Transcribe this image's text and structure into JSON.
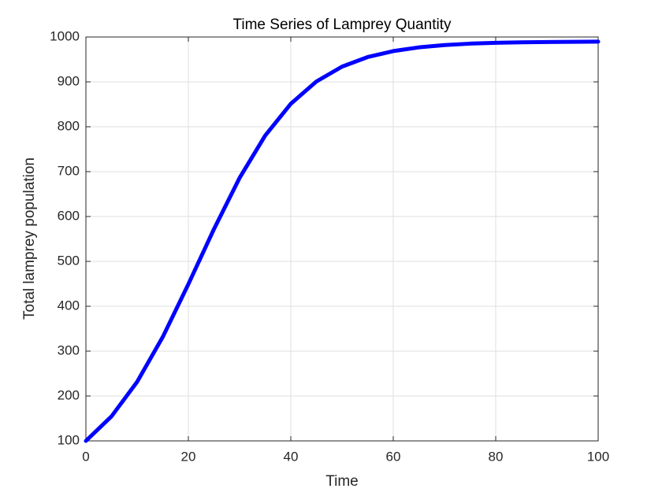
{
  "chart_data": {
    "type": "line",
    "title": "Time Series of Lamprey Quantity",
    "x_label": "Time",
    "y_label": "Total lamprey population",
    "x": [
      0,
      5,
      10,
      15,
      20,
      25,
      30,
      35,
      40,
      45,
      50,
      55,
      60,
      65,
      70,
      75,
      80,
      85,
      90,
      95,
      100
    ],
    "series": [
      {
        "name": "Lamprey population",
        "color": "#0000ff",
        "values": [
          100,
          154.7,
          231.6,
          331.5,
          449.2,
          572.0,
          686.0,
          780.3,
          851.2,
          900.9,
          934.0,
          955.3,
          968.6,
          976.9,
          982.0,
          985.2,
          987.1,
          988.2,
          988.9,
          989.3,
          989.6
        ]
      }
    ],
    "xlim": [
      0,
      100
    ],
    "xticks": [
      0,
      20,
      40,
      60,
      80,
      100
    ],
    "ylim": [
      100,
      1000
    ],
    "yticks": [
      100,
      200,
      300,
      400,
      500,
      600,
      700,
      800,
      900,
      1000
    ],
    "grid": true
  }
}
